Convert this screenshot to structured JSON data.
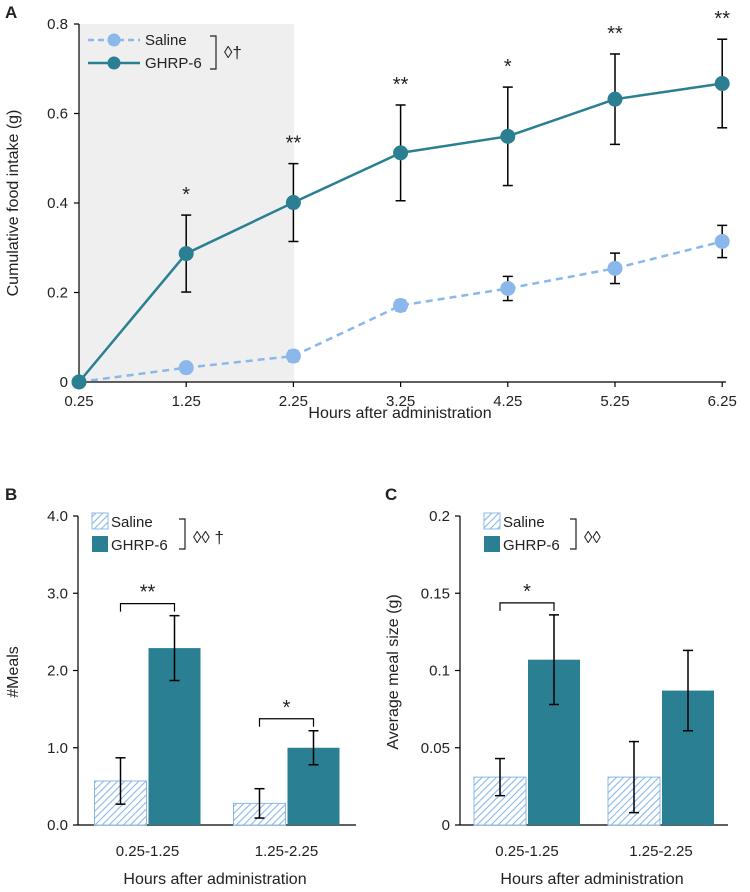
{
  "colors": {
    "saline": "#8ab8ea",
    "ghrp6": "#2a7f92",
    "axis": "#000000",
    "shade": "#efefef"
  },
  "chart_data": [
    {
      "panel": "A",
      "type": "line",
      "xlabel": "Hours after administration",
      "ylabel": "Cumulative food intake (g)",
      "categories": [
        "0.25",
        "1.25",
        "2.25",
        "3.25",
        "4.25",
        "5.25",
        "6.25"
      ],
      "ylim": [
        0,
        0.8
      ],
      "yticks": [
        "0",
        "0.2",
        "0.4",
        "0.6",
        "0.8"
      ],
      "shaded_range": [
        "0.25",
        "2.25"
      ],
      "series": [
        {
          "name": "Saline",
          "values": [
            0,
            0.032,
            0.058,
            0.171,
            0.209,
            0.254,
            0.314
          ],
          "errors": [
            0,
            0,
            0.012,
            0.012,
            0.027,
            0.034,
            0.036
          ]
        },
        {
          "name": "GHRP-6",
          "values": [
            0,
            0.287,
            0.401,
            0.512,
            0.549,
            0.632,
            0.667
          ],
          "errors": [
            0,
            0.086,
            0.087,
            0.107,
            0.11,
            0.101,
            0.099
          ]
        }
      ],
      "significance": [
        "",
        "*",
        "**",
        "**",
        "*",
        "**",
        "**"
      ],
      "legend_annotation": "◊†"
    },
    {
      "panel": "B",
      "type": "bar",
      "xlabel": "Hours after administration",
      "ylabel": "#Meals",
      "categories": [
        "0.25-1.25",
        "1.25-2.25"
      ],
      "ylim": [
        0,
        4.0
      ],
      "yticks": [
        "0.0",
        "1.0",
        "2.0",
        "3.0",
        "4.0"
      ],
      "series": [
        {
          "name": "Saline",
          "values": [
            0.57,
            0.28
          ],
          "errors": [
            0.3,
            0.19
          ]
        },
        {
          "name": "GHRP-6",
          "values": [
            2.29,
            1.0
          ],
          "errors": [
            0.42,
            0.22
          ]
        }
      ],
      "significance": [
        "**",
        "*"
      ],
      "legend_annotation": "◊◊ †"
    },
    {
      "panel": "C",
      "type": "bar",
      "xlabel": "Hours after administration",
      "ylabel": "Average meal size (g)",
      "categories": [
        "0.25-1.25",
        "1.25-2.25"
      ],
      "ylim": [
        0,
        0.2
      ],
      "yticks": [
        "0",
        "0.05",
        "0.1",
        "0.15",
        "0.2"
      ],
      "series": [
        {
          "name": "Saline",
          "values": [
            0.031,
            0.031
          ],
          "errors": [
            0.012,
            0.023
          ]
        },
        {
          "name": "GHRP-6",
          "values": [
            0.107,
            0.087
          ],
          "errors": [
            0.029,
            0.026
          ]
        }
      ],
      "significance": [
        "*",
        ""
      ],
      "legend_annotation": "◊◊"
    }
  ]
}
